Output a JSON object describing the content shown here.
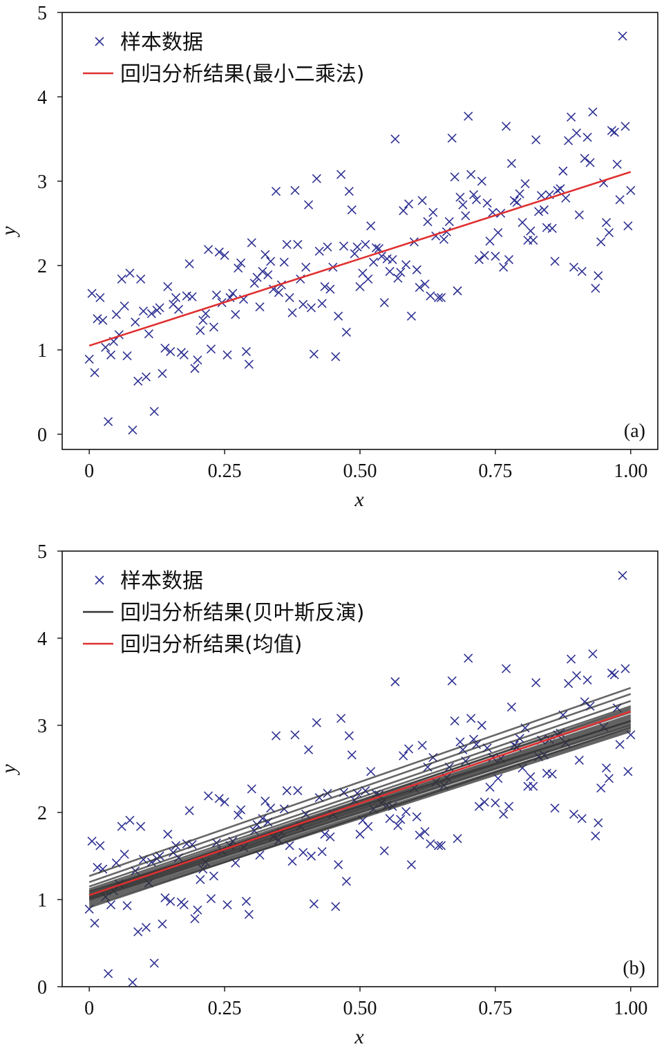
{
  "colors": {
    "samples": "#2e3192",
    "fit": "#e03030",
    "posterior": "#333333"
  },
  "chart_data": [
    {
      "type": "scatter",
      "panel_label": "(a)",
      "xlabel": "x",
      "ylabel": "y",
      "xlim": [
        -0.05,
        1.05
      ],
      "ylim": [
        -0.18,
        5
      ],
      "xticks": [
        0,
        0.25,
        0.5,
        0.75,
        1.0
      ],
      "xtick_labels": [
        "0",
        "0.25",
        "0.50",
        "0.75",
        "1.00"
      ],
      "yticks": [
        0,
        1,
        2,
        3,
        4,
        5
      ],
      "ytick_labels": [
        "0",
        "1",
        "2",
        "3",
        "4",
        "5"
      ],
      "legend_position": "top-left",
      "series": [
        {
          "name": "样本数据",
          "kind": "scatter",
          "marker": "x",
          "color": "#2e3192"
        },
        {
          "name": "回归分析结果(最小二乘法)",
          "kind": "line",
          "color": "#e03030",
          "x": [
            0,
            1
          ],
          "y": [
            1.05,
            3.11
          ]
        }
      ]
    },
    {
      "type": "scatter",
      "panel_label": "(b)",
      "xlabel": "x",
      "ylabel": "y",
      "xlim": [
        -0.05,
        1.05
      ],
      "ylim": [
        0,
        5
      ],
      "xticks": [
        0,
        0.25,
        0.5,
        0.75,
        1.0
      ],
      "xtick_labels": [
        "0",
        "0.25",
        "0.50",
        "0.75",
        "1.00"
      ],
      "yticks": [
        0,
        1,
        2,
        3,
        4,
        5
      ],
      "ytick_labels": [
        "0",
        "1",
        "2",
        "3",
        "4",
        "5"
      ],
      "legend_position": "top-left",
      "series": [
        {
          "name": "样本数据",
          "kind": "scatter",
          "marker": "x",
          "color": "#2e3192"
        },
        {
          "name": "回归分析结果(贝叶斯反演)",
          "kind": "lines",
          "color": "#333333",
          "lines": [
            [
              1.27,
              3.43
            ],
            [
              1.2,
              3.36
            ],
            [
              1.15,
              3.28
            ],
            [
              1.12,
              3.22
            ],
            [
              1.1,
              3.18
            ],
            [
              1.08,
              3.15
            ],
            [
              1.06,
              3.12
            ],
            [
              1.05,
              3.1
            ],
            [
              1.04,
              3.08
            ],
            [
              1.03,
              3.06
            ],
            [
              1.02,
              3.05
            ],
            [
              1.01,
              3.03
            ],
            [
              1.0,
              3.01
            ],
            [
              0.99,
              3.0
            ],
            [
              0.97,
              2.97
            ],
            [
              0.95,
              2.95
            ],
            [
              0.93,
              2.93
            ],
            [
              0.91,
              2.98
            ],
            [
              1.09,
              3.05
            ],
            [
              1.06,
              3.2
            ]
          ]
        },
        {
          "name": "回归分析结果(均值)",
          "kind": "line",
          "color": "#e03030",
          "x": [
            0,
            1
          ],
          "y": [
            1.05,
            3.16
          ]
        }
      ]
    }
  ],
  "samples": [
    [
      0.0,
      0.89
    ],
    [
      0.005,
      1.67
    ],
    [
      0.01,
      0.73
    ],
    [
      0.015,
      1.37
    ],
    [
      0.02,
      1.62
    ],
    [
      0.025,
      1.35
    ],
    [
      0.03,
      1.03
    ],
    [
      0.035,
      0.15
    ],
    [
      0.04,
      0.94
    ],
    [
      0.045,
      1.1
    ],
    [
      0.05,
      1.42
    ],
    [
      0.055,
      1.18
    ],
    [
      0.06,
      1.84
    ],
    [
      0.065,
      1.52
    ],
    [
      0.07,
      0.93
    ],
    [
      0.075,
      1.91
    ],
    [
      0.08,
      0.05
    ],
    [
      0.085,
      1.33
    ],
    [
      0.09,
      0.63
    ],
    [
      0.095,
      1.84
    ],
    [
      0.1,
      1.46
    ],
    [
      0.105,
      0.68
    ],
    [
      0.11,
      1.19
    ],
    [
      0.115,
      1.43
    ],
    [
      0.12,
      0.27
    ],
    [
      0.125,
      1.47
    ],
    [
      0.13,
      1.5
    ],
    [
      0.135,
      0.72
    ],
    [
      0.14,
      1.02
    ],
    [
      0.145,
      1.75
    ],
    [
      0.15,
      0.98
    ],
    [
      0.155,
      1.54
    ],
    [
      0.16,
      1.62
    ],
    [
      0.165,
      1.48
    ],
    [
      0.17,
      0.97
    ],
    [
      0.175,
      0.94
    ],
    [
      0.18,
      1.64
    ],
    [
      0.185,
      2.02
    ],
    [
      0.19,
      1.63
    ],
    [
      0.195,
      0.78
    ],
    [
      0.2,
      0.88
    ],
    [
      0.205,
      1.23
    ],
    [
      0.21,
      1.35
    ],
    [
      0.215,
      1.43
    ],
    [
      0.22,
      2.19
    ],
    [
      0.225,
      1.01
    ],
    [
      0.23,
      1.27
    ],
    [
      0.235,
      1.65
    ],
    [
      0.24,
      2.16
    ],
    [
      0.245,
      1.56
    ],
    [
      0.25,
      2.12
    ],
    [
      0.255,
      0.94
    ],
    [
      0.26,
      1.62
    ],
    [
      0.265,
      1.67
    ],
    [
      0.27,
      1.42
    ],
    [
      0.275,
      1.97
    ],
    [
      0.28,
      2.03
    ],
    [
      0.285,
      1.6
    ],
    [
      0.29,
      0.98
    ],
    [
      0.295,
      0.83
    ],
    [
      0.3,
      2.27
    ],
    [
      0.305,
      1.79
    ],
    [
      0.31,
      1.86
    ],
    [
      0.315,
      1.51
    ],
    [
      0.32,
      1.93
    ],
    [
      0.325,
      2.13
    ],
    [
      0.33,
      1.89
    ],
    [
      0.335,
      2.05
    ],
    [
      0.34,
      1.72
    ],
    [
      0.345,
      2.88
    ],
    [
      0.35,
      1.68
    ],
    [
      0.355,
      1.77
    ],
    [
      0.36,
      2.04
    ],
    [
      0.365,
      2.25
    ],
    [
      0.37,
      1.62
    ],
    [
      0.375,
      1.44
    ],
    [
      0.38,
      2.89
    ],
    [
      0.385,
      2.25
    ],
    [
      0.39,
      1.84
    ],
    [
      0.395,
      1.54
    ],
    [
      0.4,
      1.98
    ],
    [
      0.405,
      2.72
    ],
    [
      0.41,
      1.5
    ],
    [
      0.415,
      0.95
    ],
    [
      0.42,
      3.03
    ],
    [
      0.425,
      2.17
    ],
    [
      0.43,
      1.55
    ],
    [
      0.435,
      1.75
    ],
    [
      0.44,
      2.22
    ],
    [
      0.445,
      1.72
    ],
    [
      0.45,
      1.98
    ],
    [
      0.455,
      0.92
    ],
    [
      0.46,
      1.4
    ],
    [
      0.465,
      3.08
    ],
    [
      0.47,
      2.23
    ],
    [
      0.475,
      1.21
    ],
    [
      0.48,
      2.88
    ],
    [
      0.485,
      2.66
    ],
    [
      0.49,
      2.14
    ],
    [
      0.495,
      2.22
    ],
    [
      0.5,
      1.75
    ],
    [
      0.505,
      1.91
    ],
    [
      0.51,
      2.25
    ],
    [
      0.515,
      1.84
    ],
    [
      0.52,
      2.47
    ],
    [
      0.525,
      2.04
    ],
    [
      0.53,
      2.21
    ],
    [
      0.535,
      2.2
    ],
    [
      0.54,
      2.11
    ],
    [
      0.545,
      1.56
    ],
    [
      0.55,
      2.08
    ],
    [
      0.555,
      1.93
    ],
    [
      0.56,
      2.07
    ],
    [
      0.565,
      3.5
    ],
    [
      0.57,
      1.85
    ],
    [
      0.575,
      1.92
    ],
    [
      0.58,
      2.65
    ],
    [
      0.585,
      2.01
    ],
    [
      0.59,
      2.73
    ],
    [
      0.595,
      1.4
    ],
    [
      0.6,
      2.28
    ],
    [
      0.605,
      1.95
    ],
    [
      0.61,
      1.74
    ],
    [
      0.615,
      2.77
    ],
    [
      0.62,
      1.78
    ],
    [
      0.625,
      2.52
    ],
    [
      0.63,
      1.64
    ],
    [
      0.635,
      2.63
    ],
    [
      0.64,
      2.35
    ],
    [
      0.645,
      1.62
    ],
    [
      0.65,
      1.62
    ],
    [
      0.655,
      2.31
    ],
    [
      0.66,
      2.4
    ],
    [
      0.665,
      2.52
    ],
    [
      0.67,
      3.51
    ],
    [
      0.675,
      3.05
    ],
    [
      0.68,
      1.7
    ],
    [
      0.685,
      2.81
    ],
    [
      0.69,
      2.72
    ],
    [
      0.695,
      2.59
    ],
    [
      0.7,
      3.77
    ],
    [
      0.705,
      3.08
    ],
    [
      0.71,
      2.84
    ],
    [
      0.715,
      2.78
    ],
    [
      0.72,
      2.07
    ],
    [
      0.725,
      3.0
    ],
    [
      0.73,
      2.12
    ],
    [
      0.735,
      2.74
    ],
    [
      0.74,
      2.29
    ],
    [
      0.745,
      2.63
    ],
    [
      0.75,
      2.11
    ],
    [
      0.755,
      2.39
    ],
    [
      0.76,
      2.62
    ],
    [
      0.765,
      1.98
    ],
    [
      0.77,
      3.65
    ],
    [
      0.775,
      2.07
    ],
    [
      0.78,
      3.21
    ],
    [
      0.785,
      2.77
    ],
    [
      0.79,
      2.75
    ],
    [
      0.795,
      2.85
    ],
    [
      0.8,
      2.51
    ],
    [
      0.805,
      2.97
    ],
    [
      0.81,
      2.3
    ],
    [
      0.815,
      2.41
    ],
    [
      0.82,
      2.3
    ],
    [
      0.825,
      3.49
    ],
    [
      0.83,
      2.64
    ],
    [
      0.835,
      2.83
    ],
    [
      0.84,
      2.66
    ],
    [
      0.845,
      2.45
    ],
    [
      0.85,
      2.84
    ],
    [
      0.855,
      2.44
    ],
    [
      0.86,
      2.05
    ],
    [
      0.865,
      2.89
    ],
    [
      0.87,
      2.91
    ],
    [
      0.875,
      3.12
    ],
    [
      0.88,
      2.8
    ],
    [
      0.885,
      3.48
    ],
    [
      0.89,
      3.76
    ],
    [
      0.895,
      1.98
    ],
    [
      0.9,
      3.57
    ],
    [
      0.905,
      2.6
    ],
    [
      0.91,
      1.93
    ],
    [
      0.915,
      3.27
    ],
    [
      0.92,
      3.52
    ],
    [
      0.925,
      3.22
    ],
    [
      0.93,
      3.82
    ],
    [
      0.935,
      1.73
    ],
    [
      0.94,
      1.88
    ],
    [
      0.945,
      2.28
    ],
    [
      0.95,
      2.98
    ],
    [
      0.955,
      2.51
    ],
    [
      0.96,
      2.39
    ],
    [
      0.965,
      3.6
    ],
    [
      0.97,
      3.58
    ],
    [
      0.975,
      3.2
    ],
    [
      0.98,
      2.78
    ],
    [
      0.985,
      4.72
    ],
    [
      0.99,
      3.65
    ],
    [
      0.995,
      2.47
    ],
    [
      1.0,
      2.89
    ]
  ]
}
